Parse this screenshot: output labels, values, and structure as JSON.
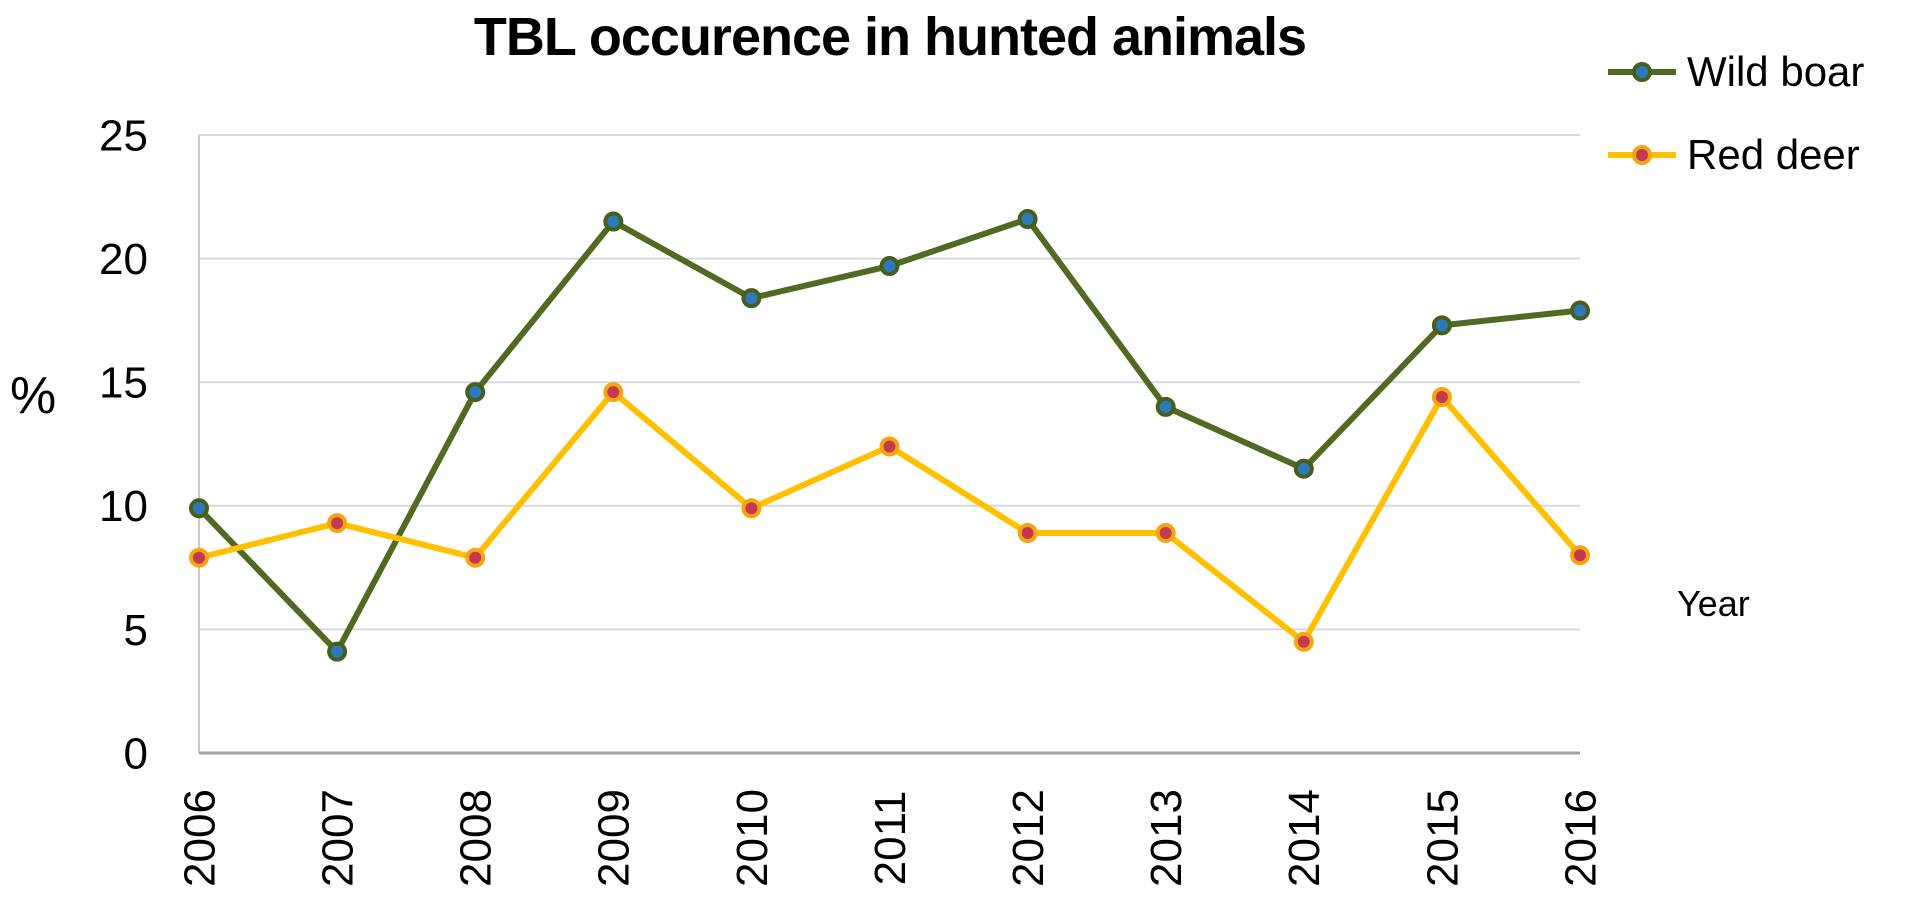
{
  "title": "TBL occurence in hunted animals",
  "colors": {
    "background": "#ffffff",
    "gridline": "#d9d9d9",
    "axis_line": "#a6a6a6",
    "left_axis_line": "#c9c9c9",
    "text": "#000000"
  },
  "chart_data": {
    "type": "line",
    "title": "TBL occurence in hunted animals",
    "xlabel": "Year",
    "ylabel": "%",
    "x": [
      "2006",
      "2007",
      "2008",
      "2009",
      "2010",
      "2011",
      "2012",
      "2013",
      "2014",
      "2015",
      "2016"
    ],
    "series": [
      {
        "name": "Wild boar",
        "line_color": "#506b21",
        "marker_fill": "#2e79bd",
        "marker_ring": "#46601c",
        "values": [
          9.9,
          4.1,
          14.6,
          21.5,
          18.4,
          19.7,
          21.6,
          14.0,
          11.5,
          17.3,
          17.9
        ]
      },
      {
        "name": "Red deer",
        "line_color": "#ffc000",
        "marker_fill": "#c4394f",
        "marker_ring": "#f4a513",
        "values": [
          7.9,
          9.3,
          7.9,
          14.6,
          9.9,
          12.4,
          8.9,
          8.9,
          4.5,
          14.4,
          8.0
        ]
      }
    ],
    "ylim": [
      0,
      25
    ],
    "yticks": [
      0,
      5,
      10,
      15,
      20,
      25
    ],
    "grid": true,
    "legend_position": "top-right"
  }
}
